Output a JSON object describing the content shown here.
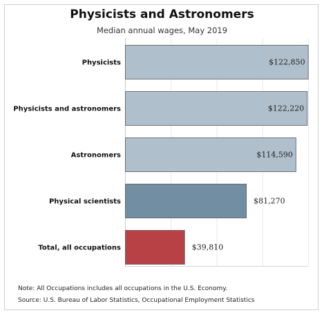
{
  "chart_data": {
    "type": "bar",
    "orientation": "horizontal",
    "title": "Physicists and Astronomers",
    "subtitle": "Median annual wages, May 2019",
    "categories": [
      "Physicists",
      "Physicists and astronomers",
      "Astronomers",
      "Physical scientists",
      "Total, all occupations"
    ],
    "values": [
      122850,
      122220,
      114590,
      81270,
      39810
    ],
    "value_labels": [
      "$122,850",
      "$122,220",
      "$114,590",
      "$81,270",
      "$39,810"
    ],
    "bar_colors": [
      "#afc0cc",
      "#afc0cc",
      "#afc0cc",
      "#728ea3",
      "#b84146"
    ],
    "xlim": [
      0,
      123000
    ],
    "grid": true
  },
  "notes": {
    "note": "Note: All Occupations includes all occupations in the U.S. Economy.",
    "source": "Source: U.S. Bureau of Labor Statistics, Occupational Employment Statistics"
  }
}
